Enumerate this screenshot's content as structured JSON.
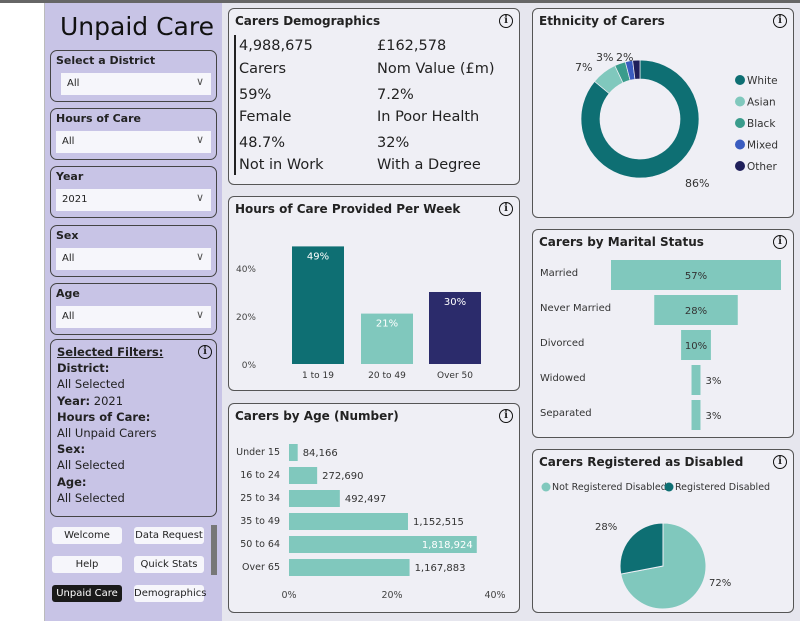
{
  "app_title": "Unpaid Care",
  "slicers": [
    {
      "label": "Select a District",
      "value": "All"
    },
    {
      "label": "Hours of Care",
      "value": "All"
    },
    {
      "label": "Year",
      "value": "2021"
    },
    {
      "label": "Sex",
      "value": "All"
    },
    {
      "label": "Age",
      "value": "All"
    }
  ],
  "selected_filters": {
    "heading": "Selected Filters:",
    "district_label": "District:",
    "district_value": "All Selected",
    "year_label": "Year:",
    "year_value": "2021",
    "hours_label": "Hours of Care:",
    "hours_value": "All Unpaid Carers",
    "sex_label": "Sex:",
    "sex_value": "All Selected",
    "age_label": "Age:",
    "age_value": "All Selected"
  },
  "nav": {
    "welcome": "Welcome",
    "data_request": "Data Request",
    "help": "Help",
    "quick_stats": "Quick Stats",
    "unpaid_care": "Unpaid Care",
    "demographics": "Demographics",
    "active": "Unpaid Care"
  },
  "info_icon": "i",
  "demographics": {
    "title": "Carers Demographics",
    "kpis": [
      {
        "value": "4,988,675",
        "label": "Carers"
      },
      {
        "value": "£162,578",
        "label": "Nom Value (£m)"
      },
      {
        "value": "59%",
        "label": "Female"
      },
      {
        "value": "7.2%",
        "label": "In Poor Health"
      },
      {
        "value": "48.7%",
        "label": "Not in Work"
      },
      {
        "value": "32%",
        "label": "With a Degree"
      }
    ]
  },
  "colors": {
    "teal_dark": "#0e6f73",
    "teal_light": "#80c8bd",
    "navy": "#2b2b6b",
    "sidebar": "#c8c4e6"
  },
  "chart_data": [
    {
      "id": "hours",
      "type": "bar",
      "title": "Hours of Care Provided Per Week",
      "categories": [
        "1 to 19",
        "20 to 49",
        "Over 50"
      ],
      "values": [
        49,
        21,
        30
      ],
      "data_labels": [
        "49%",
        "21%",
        "30%"
      ],
      "colors": [
        "#0e6f73",
        "#80c8bd",
        "#2b2b6b"
      ],
      "ylim": [
        0,
        50
      ],
      "yticks": [
        "0%",
        "20%",
        "40%"
      ]
    },
    {
      "id": "age",
      "type": "bar",
      "orientation": "horizontal",
      "title": "Carers by Age (Number)",
      "categories": [
        "Under 15",
        "16 to 24",
        "25 to 34",
        "35 to 49",
        "50 to 64",
        "Over 65"
      ],
      "values": [
        84166,
        272690,
        492497,
        1152515,
        1818924,
        1167883
      ],
      "data_labels": [
        "84,166",
        "272,690",
        "492,497",
        "1,152,515",
        "1,818,924",
        "1,167,883"
      ],
      "total": 4988675,
      "xlim": [
        0,
        40
      ],
      "xticks": [
        "0%",
        "20%",
        "40%"
      ]
    },
    {
      "id": "ethnicity",
      "type": "pie",
      "donut": true,
      "title": "Ethnicity of Carers",
      "categories": [
        "White",
        "Asian",
        "Black",
        "Mixed",
        "Other"
      ],
      "values": [
        86,
        7,
        3,
        2,
        2
      ],
      "data_labels": [
        "86%",
        "7%",
        "3%",
        "2%",
        ""
      ],
      "colors": [
        "#0e6f73",
        "#80c8bd",
        "#3a9c8c",
        "#3a5cc0",
        "#1f1f5a"
      ],
      "legend": "right"
    },
    {
      "id": "marital",
      "type": "funnel",
      "title": "Carers by Marital Status",
      "categories": [
        "Married",
        "Never Married",
        "Divorced",
        "Widowed",
        "Separated"
      ],
      "values": [
        57,
        28,
        10,
        3,
        3
      ],
      "data_labels": [
        "57%",
        "28%",
        "10%",
        "3%",
        "3%"
      ]
    },
    {
      "id": "disabled",
      "type": "pie",
      "title": "Carers Registered as Disabled",
      "categories": [
        "Not Registered Disabled",
        "Registered Disabled"
      ],
      "values": [
        72,
        28
      ],
      "data_labels": [
        "72%",
        "28%"
      ],
      "colors": [
        "#80c8bd",
        "#0e6f73"
      ],
      "legend": "top"
    }
  ]
}
